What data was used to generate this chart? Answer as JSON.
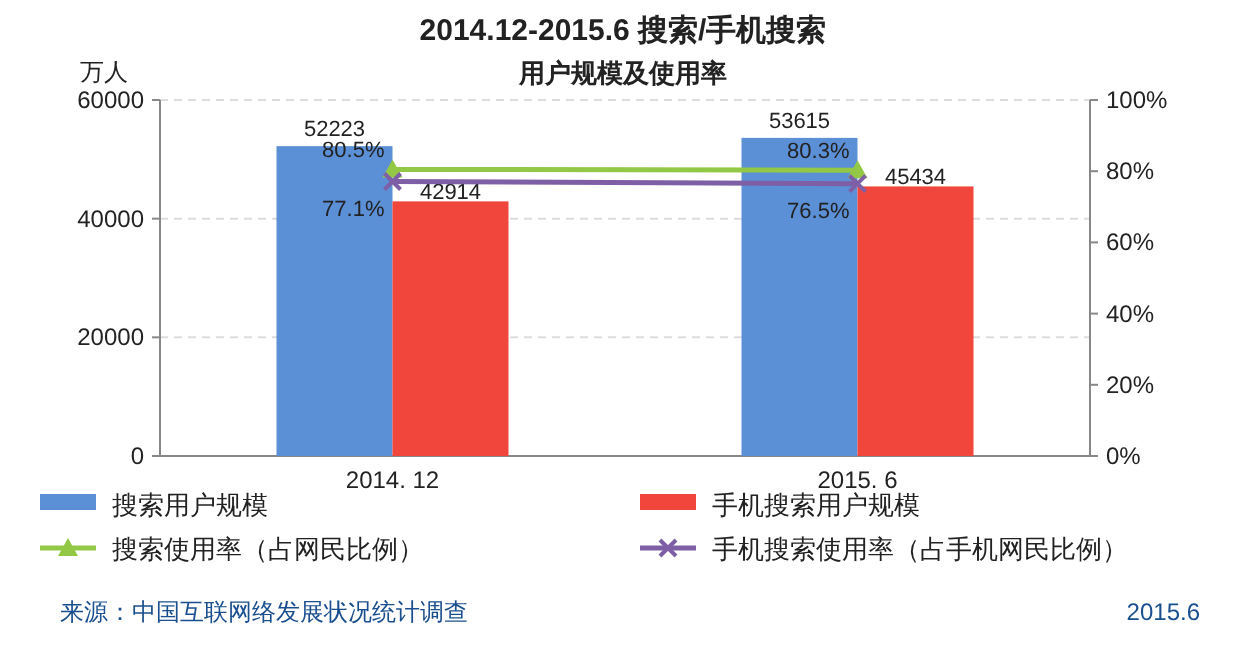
{
  "chart_data": {
    "type": "bar",
    "title": "2014.12-2015.6 搜索/手机搜索",
    "subtitle": "用户规模及使用率",
    "ylabel": "万人",
    "categories": [
      "2014. 12",
      "2015. 6"
    ],
    "series": [
      {
        "name": "搜索用户规模",
        "color": "#5b8fd6",
        "values": [
          52223,
          53615
        ],
        "value_labels": [
          "52223",
          "53615"
        ]
      },
      {
        "name": "手机搜索用户规模",
        "color": "#f0463c",
        "values": [
          42914,
          45434
        ],
        "value_labels": [
          "42914",
          "45434"
        ]
      },
      {
        "name": "搜索使用率（占网民比例）",
        "type": "line",
        "axis": "y2",
        "marker": "triangle",
        "color": "#92c846",
        "values": [
          80.5,
          80.3
        ],
        "value_labels": [
          "80.5%",
          "80.3%"
        ]
      },
      {
        "name": "手机搜索使用率（占手机网民比例）",
        "type": "line",
        "axis": "y2",
        "marker": "cross",
        "color": "#7e5fa6",
        "values": [
          77.1,
          76.5
        ],
        "value_labels": [
          "77.1%",
          "76.5%"
        ]
      }
    ],
    "ylim": [
      0,
      60000
    ],
    "yticks": [
      0,
      20000,
      40000,
      60000
    ],
    "y2lim": [
      0,
      100
    ],
    "y2ticks": [
      {
        "value": 0,
        "label": "0%"
      },
      {
        "value": 20,
        "label": "20%"
      },
      {
        "value": 40,
        "label": "40%"
      },
      {
        "value": 60,
        "label": "60%"
      },
      {
        "value": 80,
        "label": "80%"
      },
      {
        "value": 100,
        "label": "100%"
      }
    ],
    "legend": "bottom",
    "grid": "y",
    "annotations": [
      "来源：中国互联网络发展状况统计调查",
      "2015.6"
    ]
  }
}
